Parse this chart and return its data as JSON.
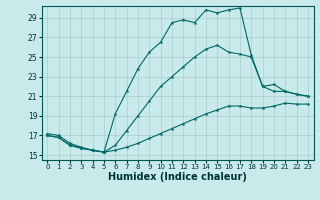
{
  "xlabel": "Humidex (Indice chaleur)",
  "background_color": "#c8eaea",
  "grid_color": "#aacccc",
  "line_color": "#006666",
  "xlim": [
    -0.5,
    23.5
  ],
  "ylim": [
    14.5,
    30.2
  ],
  "xticks": [
    0,
    1,
    2,
    3,
    4,
    5,
    6,
    7,
    8,
    9,
    10,
    11,
    12,
    13,
    14,
    15,
    16,
    17,
    18,
    19,
    20,
    21,
    22,
    23
  ],
  "yticks": [
    15,
    17,
    19,
    21,
    23,
    25,
    27,
    29
  ],
  "line1_x": [
    0,
    1,
    2,
    3,
    4,
    5,
    6,
    7,
    8,
    9,
    10,
    11,
    12,
    13,
    14,
    15,
    16,
    17,
    18,
    19,
    20,
    21,
    22,
    23
  ],
  "line1_y": [
    17.2,
    17.0,
    16.2,
    15.8,
    15.5,
    15.3,
    19.2,
    21.5,
    23.8,
    25.5,
    26.5,
    28.5,
    28.8,
    28.5,
    29.8,
    29.5,
    29.8,
    30.0,
    25.2,
    22.0,
    22.2,
    21.5,
    21.2,
    21.0
  ],
  "line2_x": [
    0,
    1,
    2,
    3,
    4,
    5,
    6,
    7,
    8,
    9,
    10,
    11,
    12,
    13,
    14,
    15,
    16,
    17,
    18,
    19,
    20,
    21,
    22,
    23
  ],
  "line2_y": [
    17.0,
    16.8,
    16.0,
    15.7,
    15.5,
    15.3,
    16.0,
    17.5,
    19.0,
    20.5,
    22.0,
    23.0,
    24.0,
    25.0,
    25.8,
    26.2,
    25.5,
    25.3,
    25.0,
    22.0,
    21.5,
    21.5,
    21.2,
    21.0
  ],
  "line3_x": [
    0,
    1,
    2,
    3,
    4,
    5,
    6,
    7,
    8,
    9,
    10,
    11,
    12,
    13,
    14,
    15,
    16,
    17,
    18,
    19,
    20,
    21,
    22,
    23
  ],
  "line3_y": [
    17.0,
    16.8,
    16.0,
    15.7,
    15.5,
    15.3,
    15.5,
    15.8,
    16.2,
    16.7,
    17.2,
    17.7,
    18.2,
    18.7,
    19.2,
    19.6,
    20.0,
    20.0,
    19.8,
    19.8,
    20.0,
    20.3,
    20.2,
    20.2
  ]
}
